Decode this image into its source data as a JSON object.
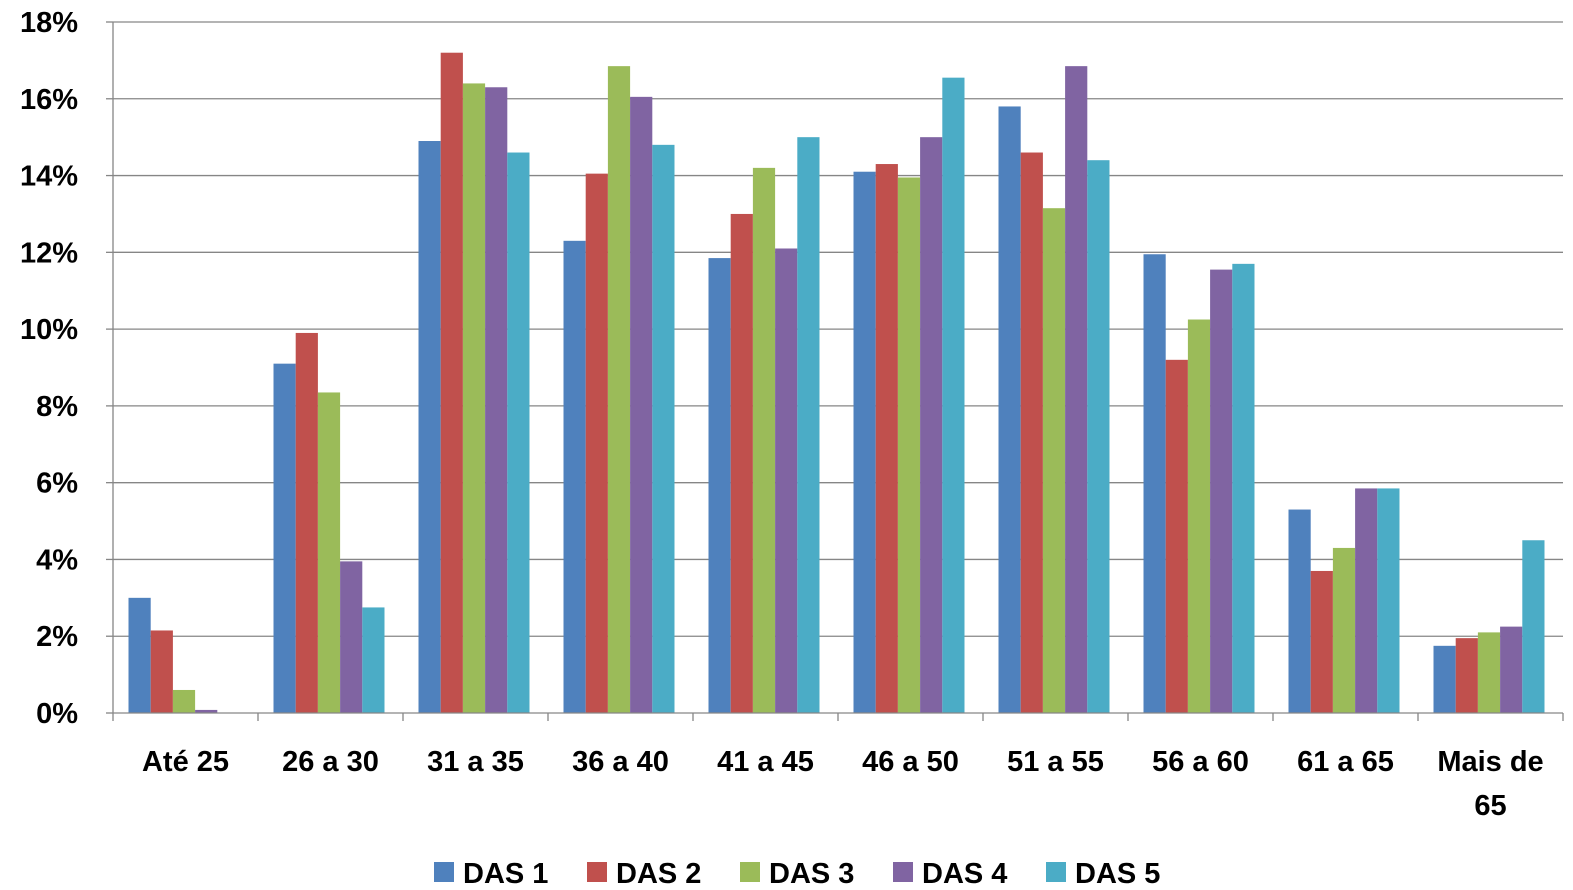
{
  "chart_data": {
    "type": "bar",
    "categories": [
      "Até 25",
      "26 a 30",
      "31 a 35",
      "36 a 40",
      "41 a 45",
      "46 a 50",
      "51 a 55",
      "56 a 60",
      "61 a 65",
      "Mais de 65"
    ],
    "category_lines": [
      [
        "Até 25"
      ],
      [
        "26 a 30"
      ],
      [
        "31 a 35"
      ],
      [
        "36 a 40"
      ],
      [
        "41 a 45"
      ],
      [
        "46 a 50"
      ],
      [
        "51 a 55"
      ],
      [
        "56 a 60"
      ],
      [
        "61 a 65"
      ],
      [
        "Mais de",
        "65"
      ]
    ],
    "series": [
      {
        "name": "DAS 1",
        "color": "#4F81BD",
        "values": [
          3.0,
          9.1,
          14.9,
          12.3,
          11.85,
          14.1,
          15.8,
          11.95,
          5.3,
          1.75
        ]
      },
      {
        "name": "DAS 2",
        "color": "#C0504D",
        "values": [
          2.15,
          9.9,
          17.2,
          14.05,
          13.0,
          14.3,
          14.6,
          9.2,
          3.7,
          1.95
        ]
      },
      {
        "name": "DAS 3",
        "color": "#9BBB59",
        "values": [
          0.6,
          8.35,
          16.4,
          16.85,
          14.2,
          13.95,
          13.15,
          10.25,
          4.3,
          2.1
        ]
      },
      {
        "name": "DAS 4",
        "color": "#8064A2",
        "values": [
          0.08,
          3.95,
          16.3,
          16.05,
          12.1,
          15.0,
          16.85,
          11.55,
          5.85,
          2.25
        ]
      },
      {
        "name": "DAS 5",
        "color": "#4BACC6",
        "values": [
          0.0,
          2.75,
          14.6,
          14.8,
          15.0,
          16.55,
          14.4,
          11.7,
          5.85,
          4.5
        ]
      }
    ],
    "y_ticks": [
      "0%",
      "2%",
      "4%",
      "6%",
      "8%",
      "10%",
      "12%",
      "14%",
      "16%",
      "18%"
    ],
    "ylim": [
      0,
      18
    ],
    "grid": true,
    "legend_position": "bottom"
  }
}
